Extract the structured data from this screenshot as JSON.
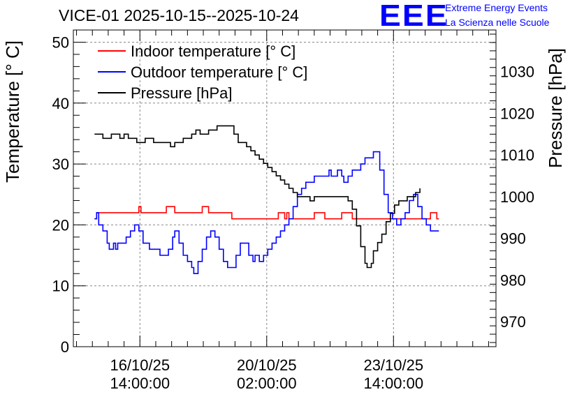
{
  "title": "VICE-01 2025-10-15--2025-10-24",
  "logo": {
    "mark": "EEE",
    "line1": "Extreme Energy Events",
    "line2": "La Scienza nelle Scuole",
    "color": "#0000ff"
  },
  "chart_data": {
    "type": "line",
    "ylabel_left": "Temperature [° C]",
    "ylabel_right": "Pressure [hPa]",
    "ylim_left": [
      0,
      52
    ],
    "ylim_right": [
      964,
      1040
    ],
    "xlim": [
      0,
      10
    ],
    "grid": true,
    "legend_position": "top-left",
    "yticks_left": [
      0,
      10,
      20,
      30,
      40,
      50
    ],
    "yticks_right": [
      970,
      980,
      990,
      1000,
      1010,
      1020,
      1030
    ],
    "xticks": [
      {
        "x": 1.575,
        "line1": "16/10/25",
        "line2": "14:00:00"
      },
      {
        "x": 4.575,
        "line1": "20/10/25",
        "line2": "02:00:00"
      },
      {
        "x": 7.575,
        "line1": "23/10/25",
        "line2": "14:00:00"
      }
    ],
    "series": [
      {
        "name": "Indoor temperature [° C]",
        "axis": "left",
        "color": "#ff0000",
        "points": [
          [
            0.5,
            21
          ],
          [
            0.55,
            22
          ],
          [
            0.7,
            22
          ],
          [
            1.0,
            22
          ],
          [
            1.3,
            22
          ],
          [
            1.5,
            22
          ],
          [
            1.55,
            23
          ],
          [
            1.6,
            22
          ],
          [
            2.0,
            22
          ],
          [
            2.15,
            22
          ],
          [
            2.2,
            23
          ],
          [
            2.35,
            23
          ],
          [
            2.4,
            22
          ],
          [
            2.9,
            22
          ],
          [
            3.0,
            22
          ],
          [
            3.05,
            23
          ],
          [
            3.15,
            23
          ],
          [
            3.2,
            22
          ],
          [
            3.7,
            22
          ],
          [
            3.75,
            21
          ],
          [
            4.2,
            21
          ],
          [
            4.5,
            21
          ],
          [
            4.8,
            21
          ],
          [
            4.85,
            22
          ],
          [
            4.95,
            22
          ],
          [
            5.0,
            21
          ],
          [
            5.05,
            22
          ],
          [
            5.1,
            21
          ],
          [
            5.5,
            21
          ],
          [
            5.6,
            21
          ],
          [
            5.7,
            22
          ],
          [
            5.9,
            22
          ],
          [
            5.95,
            21
          ],
          [
            6.3,
            21
          ],
          [
            6.35,
            22
          ],
          [
            6.55,
            22
          ],
          [
            6.6,
            21
          ],
          [
            7.0,
            21
          ],
          [
            7.4,
            21
          ],
          [
            7.5,
            21
          ],
          [
            7.6,
            21
          ],
          [
            8.0,
            21
          ],
          [
            8.1,
            21
          ],
          [
            8.2,
            21
          ],
          [
            8.3,
            21
          ],
          [
            8.4,
            21
          ],
          [
            8.45,
            22
          ],
          [
            8.55,
            22
          ],
          [
            8.6,
            21
          ],
          [
            8.65,
            21
          ]
        ]
      },
      {
        "name": "Outdoor temperature [° C]",
        "axis": "left",
        "color": "#0000ff",
        "points": [
          [
            0.5,
            21
          ],
          [
            0.55,
            22
          ],
          [
            0.6,
            20
          ],
          [
            0.7,
            19
          ],
          [
            0.8,
            17
          ],
          [
            0.85,
            16
          ],
          [
            0.95,
            17
          ],
          [
            1.0,
            16
          ],
          [
            1.05,
            17
          ],
          [
            1.15,
            17
          ],
          [
            1.25,
            18
          ],
          [
            1.35,
            19
          ],
          [
            1.45,
            20
          ],
          [
            1.55,
            19
          ],
          [
            1.65,
            17
          ],
          [
            1.8,
            16
          ],
          [
            1.95,
            16
          ],
          [
            2.05,
            15
          ],
          [
            2.15,
            15
          ],
          [
            2.25,
            16
          ],
          [
            2.35,
            18
          ],
          [
            2.4,
            19
          ],
          [
            2.5,
            17
          ],
          [
            2.6,
            15
          ],
          [
            2.7,
            14
          ],
          [
            2.8,
            13
          ],
          [
            2.85,
            12
          ],
          [
            2.95,
            14
          ],
          [
            3.05,
            16
          ],
          [
            3.15,
            18
          ],
          [
            3.25,
            19
          ],
          [
            3.35,
            18
          ],
          [
            3.45,
            16
          ],
          [
            3.55,
            14
          ],
          [
            3.65,
            13
          ],
          [
            3.75,
            13
          ],
          [
            3.85,
            15
          ],
          [
            3.95,
            17
          ],
          [
            4.05,
            17
          ],
          [
            4.15,
            15
          ],
          [
            4.25,
            14
          ],
          [
            4.3,
            15
          ],
          [
            4.4,
            14
          ],
          [
            4.5,
            15
          ],
          [
            4.6,
            16
          ],
          [
            4.7,
            17
          ],
          [
            4.8,
            18
          ],
          [
            4.9,
            19
          ],
          [
            5.0,
            20
          ],
          [
            5.1,
            21
          ],
          [
            5.2,
            23
          ],
          [
            5.3,
            25
          ],
          [
            5.4,
            26
          ],
          [
            5.5,
            27
          ],
          [
            5.6,
            27
          ],
          [
            5.7,
            28
          ],
          [
            5.8,
            28
          ],
          [
            5.9,
            28
          ],
          [
            6.0,
            28
          ],
          [
            6.05,
            29
          ],
          [
            6.1,
            28
          ],
          [
            6.2,
            28
          ],
          [
            6.25,
            29
          ],
          [
            6.35,
            28
          ],
          [
            6.4,
            27
          ],
          [
            6.5,
            28
          ],
          [
            6.6,
            29
          ],
          [
            6.7,
            29
          ],
          [
            6.8,
            30
          ],
          [
            6.9,
            31
          ],
          [
            7.0,
            31
          ],
          [
            7.1,
            32
          ],
          [
            7.15,
            32
          ],
          [
            7.25,
            29
          ],
          [
            7.35,
            25
          ],
          [
            7.45,
            22
          ],
          [
            7.55,
            21
          ],
          [
            7.65,
            20
          ],
          [
            7.75,
            21
          ],
          [
            7.85,
            22
          ],
          [
            7.95,
            24
          ],
          [
            8.05,
            25
          ],
          [
            8.15,
            23
          ],
          [
            8.25,
            21
          ],
          [
            8.35,
            20
          ],
          [
            8.45,
            19
          ],
          [
            8.55,
            19
          ],
          [
            8.65,
            19
          ]
        ]
      },
      {
        "name": "Pressure [hPa]",
        "axis": "right",
        "color": "#000000",
        "points": [
          [
            0.5,
            1015
          ],
          [
            0.6,
            1015
          ],
          [
            0.7,
            1014
          ],
          [
            0.8,
            1014
          ],
          [
            0.9,
            1015
          ],
          [
            1.0,
            1015
          ],
          [
            1.1,
            1014
          ],
          [
            1.2,
            1015
          ],
          [
            1.3,
            1014
          ],
          [
            1.4,
            1014
          ],
          [
            1.5,
            1013
          ],
          [
            1.6,
            1013
          ],
          [
            1.7,
            1014
          ],
          [
            1.8,
            1014
          ],
          [
            1.9,
            1013
          ],
          [
            2.0,
            1013
          ],
          [
            2.1,
            1013
          ],
          [
            2.2,
            1013
          ],
          [
            2.3,
            1012
          ],
          [
            2.4,
            1013
          ],
          [
            2.5,
            1013
          ],
          [
            2.6,
            1014
          ],
          [
            2.7,
            1014
          ],
          [
            2.8,
            1015
          ],
          [
            2.9,
            1016
          ],
          [
            3.0,
            1015
          ],
          [
            3.1,
            1015
          ],
          [
            3.2,
            1016
          ],
          [
            3.3,
            1016
          ],
          [
            3.4,
            1017
          ],
          [
            3.5,
            1017
          ],
          [
            3.6,
            1017
          ],
          [
            3.7,
            1017
          ],
          [
            3.8,
            1015
          ],
          [
            3.9,
            1013
          ],
          [
            4.0,
            1013
          ],
          [
            4.1,
            1012
          ],
          [
            4.2,
            1011
          ],
          [
            4.3,
            1010
          ],
          [
            4.4,
            1009
          ],
          [
            4.5,
            1008
          ],
          [
            4.6,
            1007
          ],
          [
            4.7,
            1006
          ],
          [
            4.8,
            1005
          ],
          [
            4.9,
            1004
          ],
          [
            5.0,
            1003
          ],
          [
            5.1,
            1002
          ],
          [
            5.2,
            1001
          ],
          [
            5.3,
            1000
          ],
          [
            5.4,
            1000
          ],
          [
            5.5,
            1000
          ],
          [
            5.6,
            999
          ],
          [
            5.7,
            1000
          ],
          [
            5.8,
            1000
          ],
          [
            5.9,
            1000
          ],
          [
            6.0,
            1000
          ],
          [
            6.1,
            1000
          ],
          [
            6.2,
            1000
          ],
          [
            6.3,
            1000
          ],
          [
            6.4,
            1000
          ],
          [
            6.5,
            999
          ],
          [
            6.6,
            997
          ],
          [
            6.7,
            993
          ],
          [
            6.8,
            988
          ],
          [
            6.9,
            984
          ],
          [
            6.95,
            983
          ],
          [
            7.0,
            983
          ],
          [
            7.05,
            984
          ],
          [
            7.1,
            987
          ],
          [
            7.2,
            989
          ],
          [
            7.3,
            991
          ],
          [
            7.4,
            994
          ],
          [
            7.5,
            996
          ],
          [
            7.6,
            998
          ],
          [
            7.7,
            999
          ],
          [
            7.8,
            999
          ],
          [
            7.9,
            1000
          ],
          [
            8.0,
            1000
          ],
          [
            8.1,
            1001
          ],
          [
            8.2,
            1002
          ]
        ]
      }
    ]
  }
}
